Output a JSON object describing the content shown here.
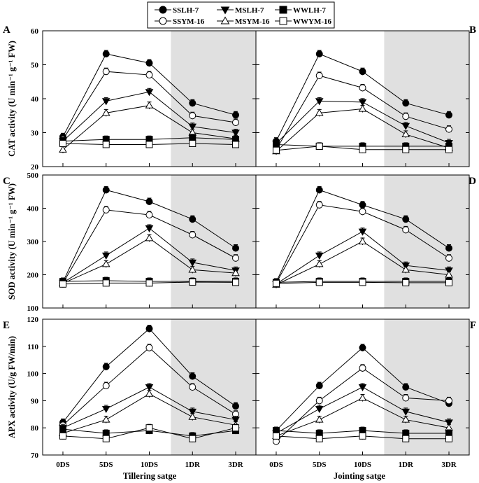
{
  "legend": {
    "entries": [
      {
        "name": "SSLH-7",
        "marker": "circle",
        "fill": "#000000"
      },
      {
        "name": "MSLH-7",
        "marker": "triangle-down",
        "fill": "#000000"
      },
      {
        "name": "WWLH-7",
        "marker": "square",
        "fill": "#000000"
      },
      {
        "name": "SSYM-16",
        "marker": "circle",
        "fill": "#ffffff"
      },
      {
        "name": "MSYM-16",
        "marker": "triangle-up",
        "fill": "#ffffff"
      },
      {
        "name": "WWYM-16",
        "marker": "square",
        "fill": "#ffffff"
      }
    ]
  },
  "x_titles": {
    "left": "Tillering satge",
    "right": "Jointing satge"
  },
  "chart_data": [
    {
      "id": "A",
      "type": "line",
      "panel_letter": "A",
      "stage": "Tillering",
      "ylabel": "CAT activity (U min⁻¹ g⁻¹ FW)",
      "ylim": [
        20,
        60
      ],
      "yticks": [
        20,
        30,
        40,
        50,
        60
      ],
      "categories": [
        "0DS",
        "5DS",
        "10DS",
        "1DR",
        "3DR"
      ],
      "shaded_from": "10DS-1DR midpoint",
      "series": [
        {
          "name": "SSLH-7",
          "values": [
            28.8,
            53.2,
            50.5,
            38.7,
            35.2
          ]
        },
        {
          "name": "SSYM-16",
          "values": [
            28.0,
            48.0,
            47.0,
            35.0,
            33.0
          ]
        },
        {
          "name": "MSLH-7",
          "values": [
            27.5,
            39.3,
            42.0,
            31.8,
            30.0
          ]
        },
        {
          "name": "MSYM-16",
          "values": [
            25.0,
            35.8,
            38.0,
            30.0,
            28.2
          ]
        },
        {
          "name": "WWLH-7",
          "values": [
            27.5,
            28.0,
            28.0,
            28.5,
            28.0
          ]
        },
        {
          "name": "WWYM-16",
          "values": [
            26.8,
            26.5,
            26.5,
            26.8,
            26.5
          ]
        }
      ]
    },
    {
      "id": "B",
      "type": "line",
      "panel_letter": "B",
      "stage": "Jointing",
      "ylabel": "",
      "ylim": [
        20,
        60
      ],
      "yticks": [
        20,
        30,
        40,
        50,
        60
      ],
      "categories": [
        "0DS",
        "5DS",
        "10DS",
        "1DR",
        "3DR"
      ],
      "series": [
        {
          "name": "SSLH-7",
          "values": [
            27.5,
            53.2,
            48.0,
            38.7,
            35.2
          ]
        },
        {
          "name": "SSYM-16",
          "values": [
            25.0,
            46.8,
            43.2,
            34.8,
            31.0
          ]
        },
        {
          "name": "MSLH-7",
          "values": [
            26.8,
            39.3,
            39.0,
            32.0,
            27.0
          ]
        },
        {
          "name": "MSYM-16",
          "values": [
            24.5,
            35.8,
            37.0,
            29.5,
            25.5
          ]
        },
        {
          "name": "WWLH-7",
          "values": [
            26.5,
            26.0,
            26.0,
            26.0,
            26.0
          ]
        },
        {
          "name": "WWYM-16",
          "values": [
            24.8,
            26.0,
            25.0,
            25.0,
            25.0
          ]
        }
      ]
    },
    {
      "id": "C",
      "type": "line",
      "panel_letter": "C",
      "stage": "Tillering",
      "ylabel": "SOD activity (U min⁻¹ g⁻¹ FW)",
      "ylim": [
        100,
        500
      ],
      "yticks": [
        100,
        200,
        300,
        400,
        500
      ],
      "categories": [
        "0DS",
        "5DS",
        "10DS",
        "1DR",
        "3DR"
      ],
      "series": [
        {
          "name": "SSLH-7",
          "values": [
            178,
            455,
            420,
            367,
            280
          ]
        },
        {
          "name": "SSYM-16",
          "values": [
            175,
            395,
            380,
            320,
            250
          ]
        },
        {
          "name": "MSLH-7",
          "values": [
            176,
            258,
            340,
            237,
            213
          ]
        },
        {
          "name": "MSYM-16",
          "values": [
            174,
            232,
            310,
            215,
            205
          ]
        },
        {
          "name": "WWLH-7",
          "values": [
            180,
            182,
            180,
            180,
            180
          ]
        },
        {
          "name": "WWYM-16",
          "values": [
            172,
            175,
            175,
            178,
            177
          ]
        }
      ]
    },
    {
      "id": "D",
      "type": "line",
      "panel_letter": "D",
      "stage": "Jointing",
      "ylabel": "",
      "ylim": [
        100,
        500
      ],
      "yticks": [
        100,
        200,
        300,
        400,
        500
      ],
      "categories": [
        "0DS",
        "5DS",
        "10DS",
        "1DR",
        "3DR"
      ],
      "series": [
        {
          "name": "SSLH-7",
          "values": [
            178,
            455,
            410,
            367,
            280
          ]
        },
        {
          "name": "SSYM-16",
          "values": [
            175,
            410,
            390,
            335,
            250
          ]
        },
        {
          "name": "MSLH-7",
          "values": [
            172,
            258,
            330,
            228,
            213
          ]
        },
        {
          "name": "MSYM-16",
          "values": [
            170,
            232,
            300,
            215,
            200
          ]
        },
        {
          "name": "WWLH-7",
          "values": [
            177,
            180,
            180,
            180,
            180
          ]
        },
        {
          "name": "WWYM-16",
          "values": [
            174,
            177,
            177,
            176,
            176
          ]
        }
      ]
    },
    {
      "id": "E",
      "type": "line",
      "panel_letter": "E",
      "stage": "Tillering",
      "ylabel": "APX activity (U/g FW/min)",
      "ylim": [
        70,
        120
      ],
      "yticks": [
        70,
        80,
        90,
        100,
        110,
        120
      ],
      "categories": [
        "0DS",
        "5DS",
        "10DS",
        "1DR",
        "3DR"
      ],
      "series": [
        {
          "name": "SSLH-7",
          "values": [
            82,
            102.5,
            116.5,
            99,
            88
          ]
        },
        {
          "name": "SSYM-16",
          "values": [
            81,
            95.5,
            109.5,
            95,
            85
          ]
        },
        {
          "name": "MSLH-7",
          "values": [
            80,
            87,
            95,
            86,
            83
          ]
        },
        {
          "name": "MSYM-16",
          "values": [
            78,
            83,
            92.5,
            84,
            81
          ]
        },
        {
          "name": "WWLH-7",
          "values": [
            79.5,
            78,
            79,
            77,
            79
          ]
        },
        {
          "name": "WWYM-16",
          "values": [
            77,
            76,
            80,
            76,
            80
          ]
        }
      ]
    },
    {
      "id": "F",
      "type": "line",
      "panel_letter": "F",
      "stage": "Jointing",
      "ylabel": "",
      "ylim": [
        70,
        120
      ],
      "yticks": [
        70,
        80,
        90,
        100,
        110,
        120
      ],
      "categories": [
        "0DS",
        "5DS",
        "10DS",
        "1DR",
        "3DR"
      ],
      "series": [
        {
          "name": "SSLH-7",
          "values": [
            79,
            95.5,
            109.5,
            95,
            89
          ]
        },
        {
          "name": "SSYM-16",
          "values": [
            75,
            90,
            102,
            91,
            90
          ]
        },
        {
          "name": "MSLH-7",
          "values": [
            78,
            87,
            95,
            86,
            82
          ]
        },
        {
          "name": "MSYM-16",
          "values": [
            77,
            83,
            91,
            83,
            80
          ]
        },
        {
          "name": "WWLH-7",
          "values": [
            79,
            78,
            79,
            78,
            78
          ]
        },
        {
          "name": "WWYM-16",
          "values": [
            77,
            76,
            77,
            76,
            76
          ]
        }
      ]
    }
  ]
}
